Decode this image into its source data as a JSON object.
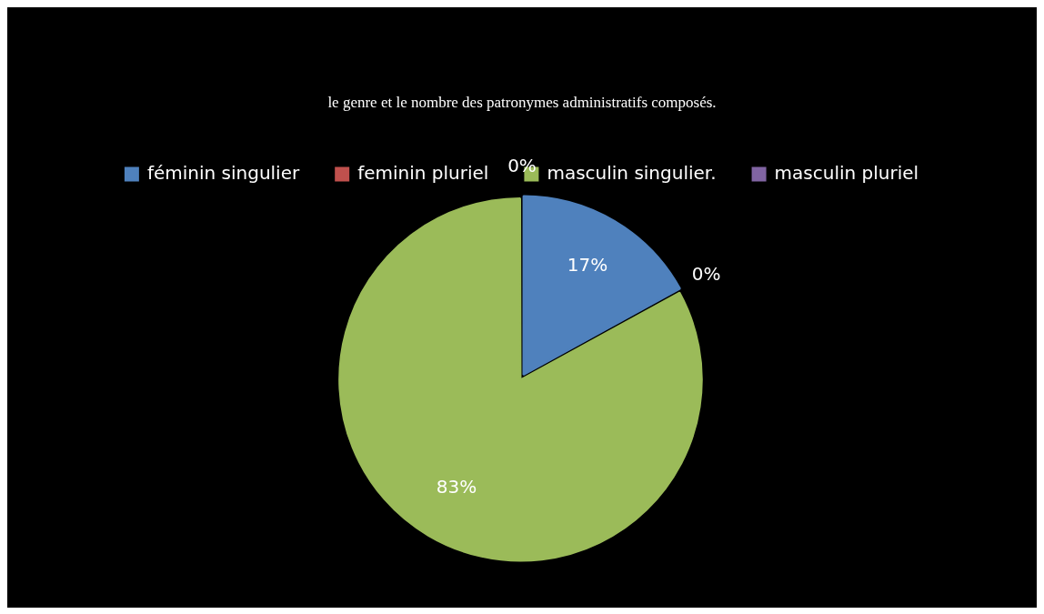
{
  "chart_data": {
    "type": "pie",
    "title": "le genre et le nombre des patronymes administratifs composés.",
    "categories": [
      "féminin singulier",
      "feminin pluriel",
      "masculin singulier.",
      "masculin pluriel"
    ],
    "values": [
      17,
      0,
      83,
      0
    ],
    "colors": [
      "#4f81bd",
      "#c0504d",
      "#9bbb59",
      "#8064a2"
    ],
    "value_labels": [
      "17%",
      "0%",
      "83%",
      "0%"
    ],
    "legend": "top"
  }
}
